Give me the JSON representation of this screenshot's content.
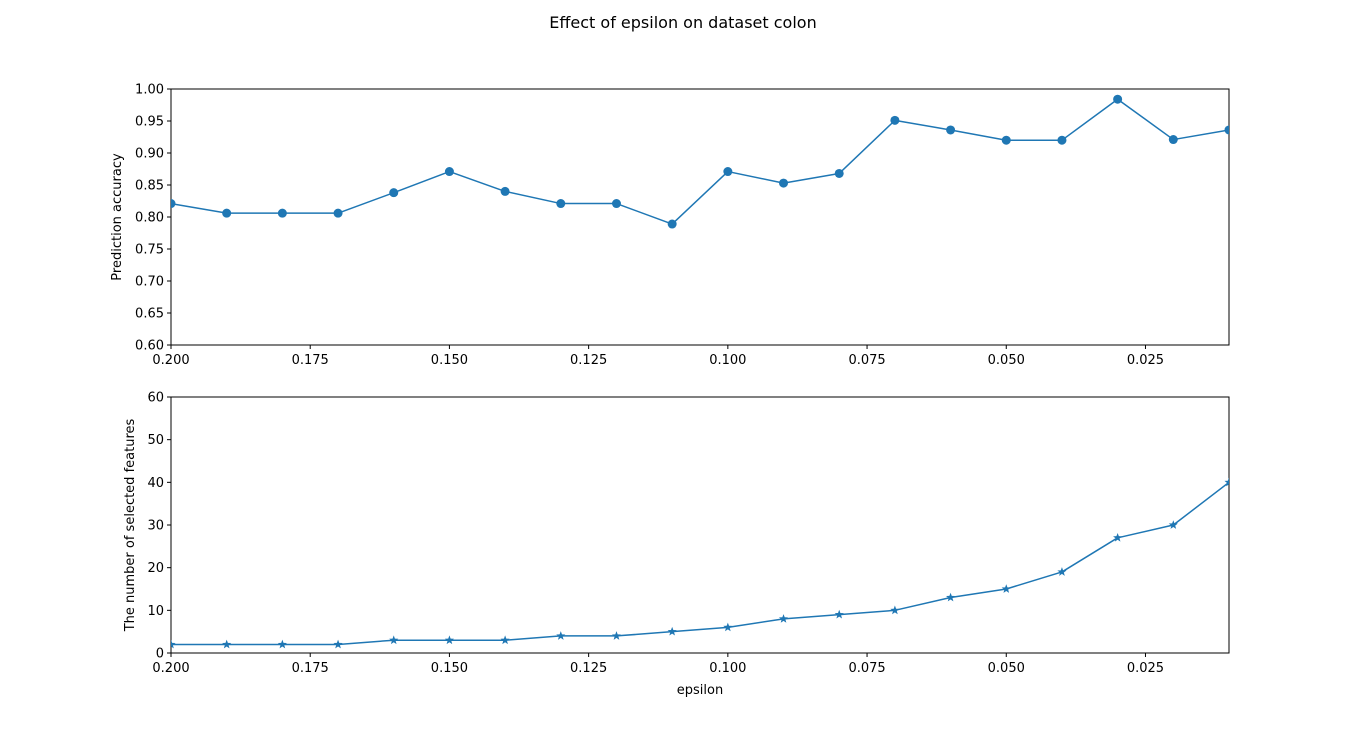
{
  "figure": {
    "suptitle": "Effect of epsilon on dataset colon"
  },
  "colors": {
    "series": "#1f77b4",
    "axes": "#000000",
    "background": "#ffffff"
  },
  "chart_data": [
    {
      "type": "line",
      "title": "",
      "xlabel": "",
      "ylabel": "Prediction accuracy",
      "x_inverted": true,
      "xlim": [
        0.2,
        0.01
      ],
      "ylim": [
        0.6,
        1.0
      ],
      "x_ticks": [
        0.2,
        0.175,
        0.15,
        0.125,
        0.1,
        0.075,
        0.05,
        0.025
      ],
      "x_tick_labels": [
        "0.200",
        "0.175",
        "0.150",
        "0.125",
        "0.100",
        "0.075",
        "0.050",
        "0.025"
      ],
      "y_ticks": [
        0.6,
        0.65,
        0.7,
        0.75,
        0.8,
        0.85,
        0.9,
        0.95,
        1.0
      ],
      "y_tick_labels": [
        "0.60",
        "0.65",
        "0.70",
        "0.75",
        "0.80",
        "0.85",
        "0.90",
        "0.95",
        "1.00"
      ],
      "grid": false,
      "marker": "circle",
      "x": [
        0.2,
        0.19,
        0.18,
        0.17,
        0.16,
        0.15,
        0.14,
        0.13,
        0.12,
        0.11,
        0.1,
        0.09,
        0.08,
        0.07,
        0.06,
        0.05,
        0.04,
        0.03,
        0.02,
        0.01
      ],
      "y": [
        0.821,
        0.806,
        0.806,
        0.806,
        0.838,
        0.871,
        0.84,
        0.821,
        0.821,
        0.789,
        0.871,
        0.853,
        0.868,
        0.951,
        0.936,
        0.92,
        0.92,
        0.984,
        0.921,
        0.936
      ]
    },
    {
      "type": "line",
      "title": "",
      "xlabel": "epsilon",
      "ylabel": "The number of selected features",
      "x_inverted": true,
      "xlim": [
        0.2,
        0.01
      ],
      "ylim": [
        0,
        60
      ],
      "x_ticks": [
        0.2,
        0.175,
        0.15,
        0.125,
        0.1,
        0.075,
        0.05,
        0.025
      ],
      "x_tick_labels": [
        "0.200",
        "0.175",
        "0.150",
        "0.125",
        "0.100",
        "0.075",
        "0.050",
        "0.025"
      ],
      "y_ticks": [
        0,
        10,
        20,
        30,
        40,
        50,
        60
      ],
      "y_tick_labels": [
        "0",
        "10",
        "20",
        "30",
        "40",
        "50",
        "60"
      ],
      "grid": false,
      "marker": "star",
      "x": [
        0.2,
        0.19,
        0.18,
        0.17,
        0.16,
        0.15,
        0.14,
        0.13,
        0.12,
        0.11,
        0.1,
        0.09,
        0.08,
        0.07,
        0.06,
        0.05,
        0.04,
        0.03,
        0.02,
        0.01
      ],
      "y": [
        2,
        2,
        2,
        2,
        3,
        3,
        3,
        4,
        4,
        5,
        6,
        8,
        9,
        10,
        13,
        15,
        19,
        27,
        30,
        40
      ]
    }
  ]
}
